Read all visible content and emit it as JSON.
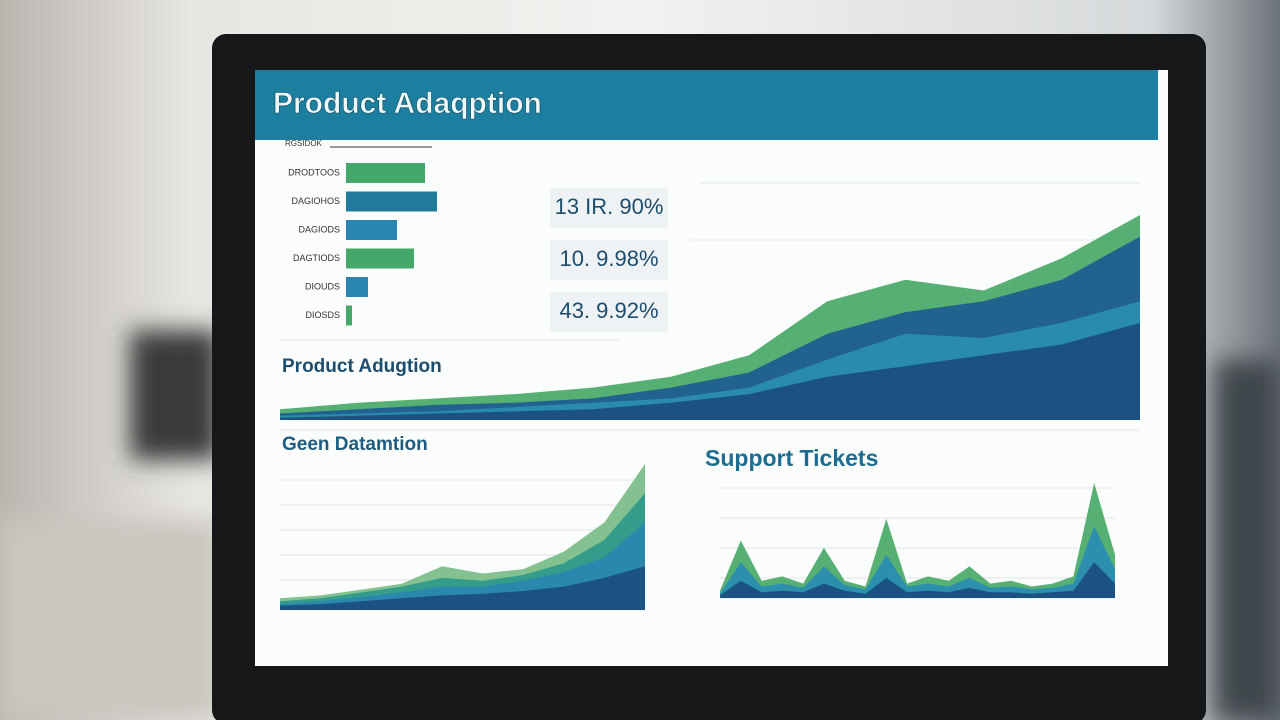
{
  "header": {
    "title": "Product Adaqption"
  },
  "bar_panel": {
    "heading": "RGSIDOK",
    "bars": [
      {
        "label": "DRODTOOS",
        "value": 79,
        "color": "#45a86a"
      },
      {
        "label": "DAGIOHOS",
        "value": 91,
        "color": "#1f7a9c"
      },
      {
        "label": "DAGIODS",
        "value": 51,
        "color": "#2a86b0"
      },
      {
        "label": "DAGTIODS",
        "value": 68,
        "color": "#45a86a"
      },
      {
        "label": "DIOUDS",
        "value": 22,
        "color": "#2a86b0"
      },
      {
        "label": "DIOSDS",
        "value": 6,
        "color": "#45a86a"
      }
    ]
  },
  "stats": [
    "13 IR. 90%",
    "10. 9.98%",
    "43. 9.92%"
  ],
  "main_chart": {
    "title": "Product Adugtion",
    "series": [
      {
        "color": "#4dac6c",
        "values": [
          5,
          8,
          10,
          12,
          15,
          20,
          30,
          55,
          65,
          60,
          75,
          95
        ]
      },
      {
        "color": "#1f5f8f",
        "values": [
          3,
          5,
          7,
          8,
          10,
          15,
          22,
          40,
          50,
          55,
          65,
          85
        ]
      },
      {
        "color": "#2a8db0",
        "values": [
          2,
          3,
          4,
          6,
          8,
          10,
          15,
          28,
          40,
          38,
          45,
          55
        ]
      },
      {
        "color": "#1a4f7f",
        "values": [
          1,
          2,
          3,
          4,
          5,
          8,
          12,
          20,
          25,
          30,
          35,
          45
        ]
      }
    ]
  },
  "left_chart": {
    "title": "Geen  Datamtion",
    "series": [
      {
        "color": "#7cbf8a",
        "values": [
          8,
          10,
          14,
          18,
          30,
          25,
          28,
          40,
          60,
          100
        ]
      },
      {
        "color": "#2f9a8a",
        "values": [
          6,
          8,
          12,
          16,
          22,
          20,
          24,
          32,
          48,
          80
        ]
      },
      {
        "color": "#2a86b0",
        "values": [
          4,
          6,
          9,
          12,
          16,
          16,
          20,
          26,
          36,
          60
        ]
      },
      {
        "color": "#1a4f7f",
        "values": [
          3,
          4,
          6,
          8,
          10,
          11,
          13,
          16,
          22,
          30
        ]
      }
    ]
  },
  "right_chart": {
    "title": "Support Tickets",
    "series": [
      {
        "color": "#4dac6c",
        "values": [
          5,
          40,
          12,
          15,
          10,
          35,
          12,
          8,
          55,
          10,
          15,
          12,
          22,
          10,
          12,
          8,
          10,
          15,
          80,
          30
        ]
      },
      {
        "color": "#2a8db0",
        "values": [
          3,
          25,
          8,
          10,
          7,
          22,
          9,
          6,
          30,
          8,
          10,
          8,
          14,
          7,
          8,
          6,
          7,
          10,
          50,
          20
        ]
      },
      {
        "color": "#1a4f7f",
        "values": [
          2,
          12,
          4,
          5,
          4,
          10,
          5,
          3,
          14,
          4,
          5,
          4,
          7,
          4,
          4,
          3,
          4,
          5,
          25,
          10
        ]
      }
    ]
  }
}
